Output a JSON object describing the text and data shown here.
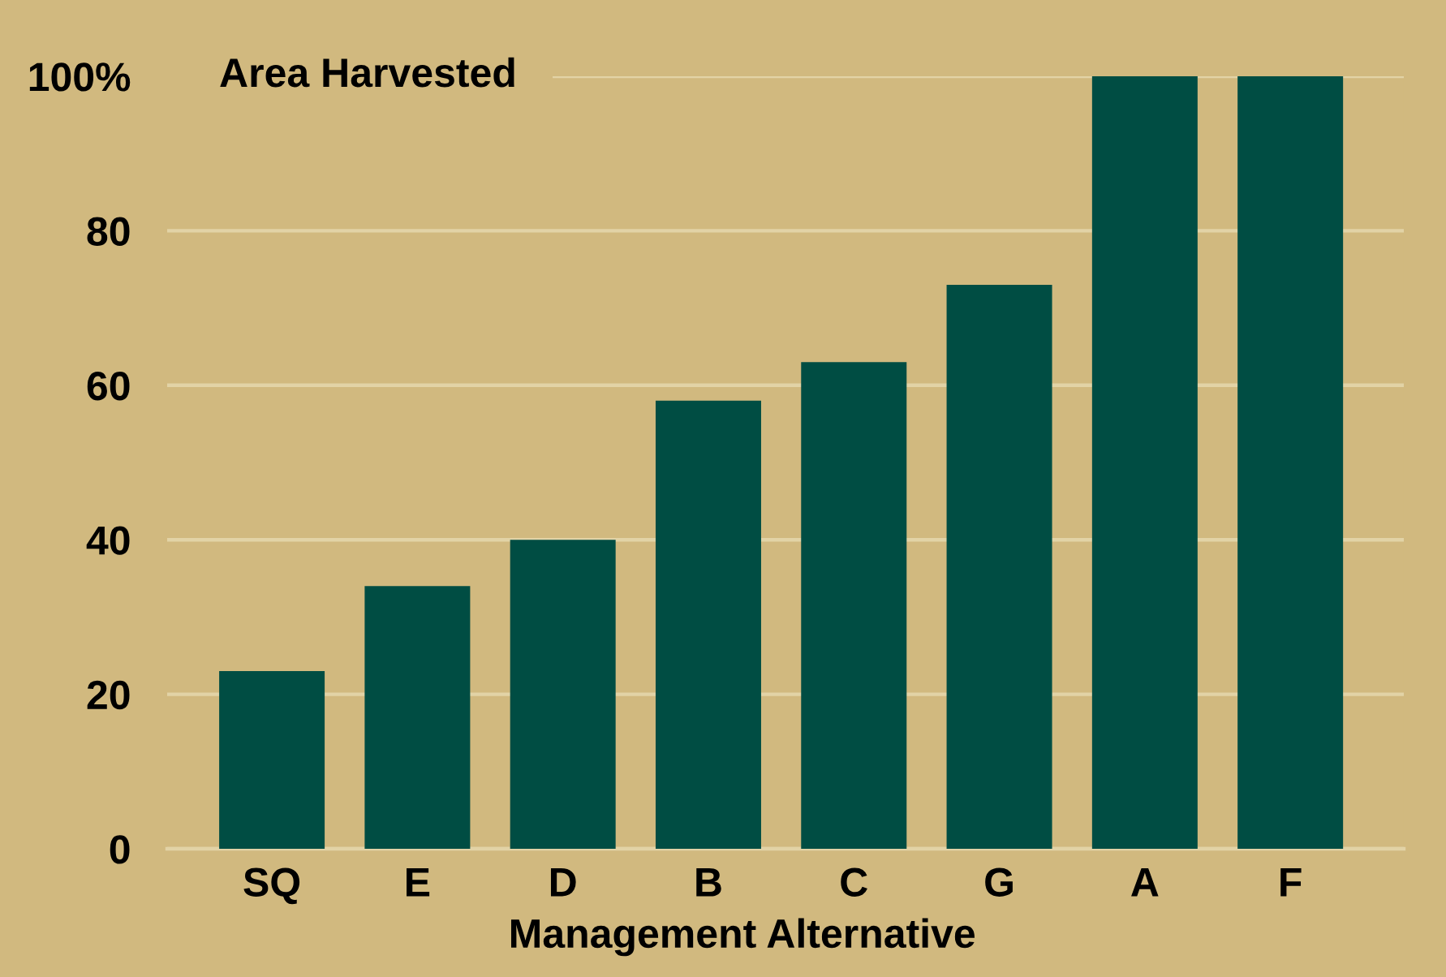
{
  "chart_data": {
    "type": "bar",
    "title": "Area Harvested",
    "xlabel": "Management Alternative",
    "categories": [
      "SQ",
      "E",
      "D",
      "B",
      "C",
      "G",
      "A",
      "F"
    ],
    "values": [
      23,
      34,
      40,
      58,
      63,
      73,
      100,
      100
    ],
    "color": "#004d43",
    "ylim": [
      0,
      100
    ],
    "yticks": [
      0,
      20,
      40,
      60,
      80,
      {
        "value": 100,
        "label": "100%"
      }
    ],
    "grid": "y"
  }
}
